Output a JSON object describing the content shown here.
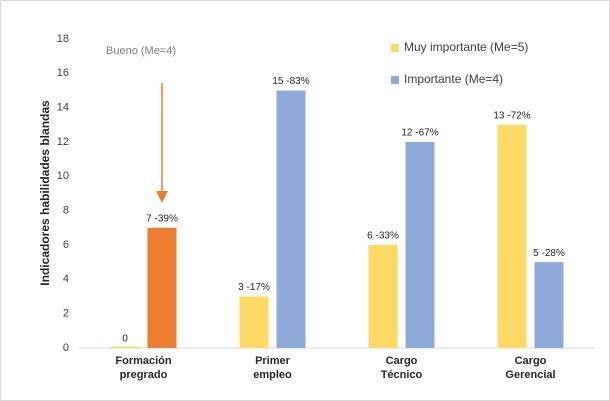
{
  "chart_data": {
    "type": "bar",
    "y_label": "Indicadores habilidades blandas",
    "categories": [
      "Formación pregrado",
      "Primer empleo",
      "Cargo Técnico",
      "Cargo Gerencial"
    ],
    "series": [
      {
        "name": "Muy importante (Me=5)",
        "color": "#ffd966",
        "values": [
          0,
          3,
          6,
          13
        ],
        "value_labels": [
          "0",
          "3 -17%",
          "6 -33%",
          "13 -72%"
        ]
      },
      {
        "name": "Importante (Me=4)",
        "color": "#8eaadb",
        "point_colors": [
          "#ed7d31",
          "#8eaadb",
          "#8eaadb",
          "#8eaadb"
        ],
        "values": [
          7,
          15,
          12,
          5
        ],
        "value_labels": [
          "7 -39%",
          "15 -83%",
          "12 -67%",
          "5 -28%"
        ]
      }
    ],
    "annotation": "Bueno (Me=4)",
    "ylim": [
      0,
      18
    ],
    "yticks": [
      0,
      2,
      4,
      6,
      8,
      10,
      12,
      14,
      16,
      18
    ],
    "grid": false,
    "legend": "top-right"
  }
}
